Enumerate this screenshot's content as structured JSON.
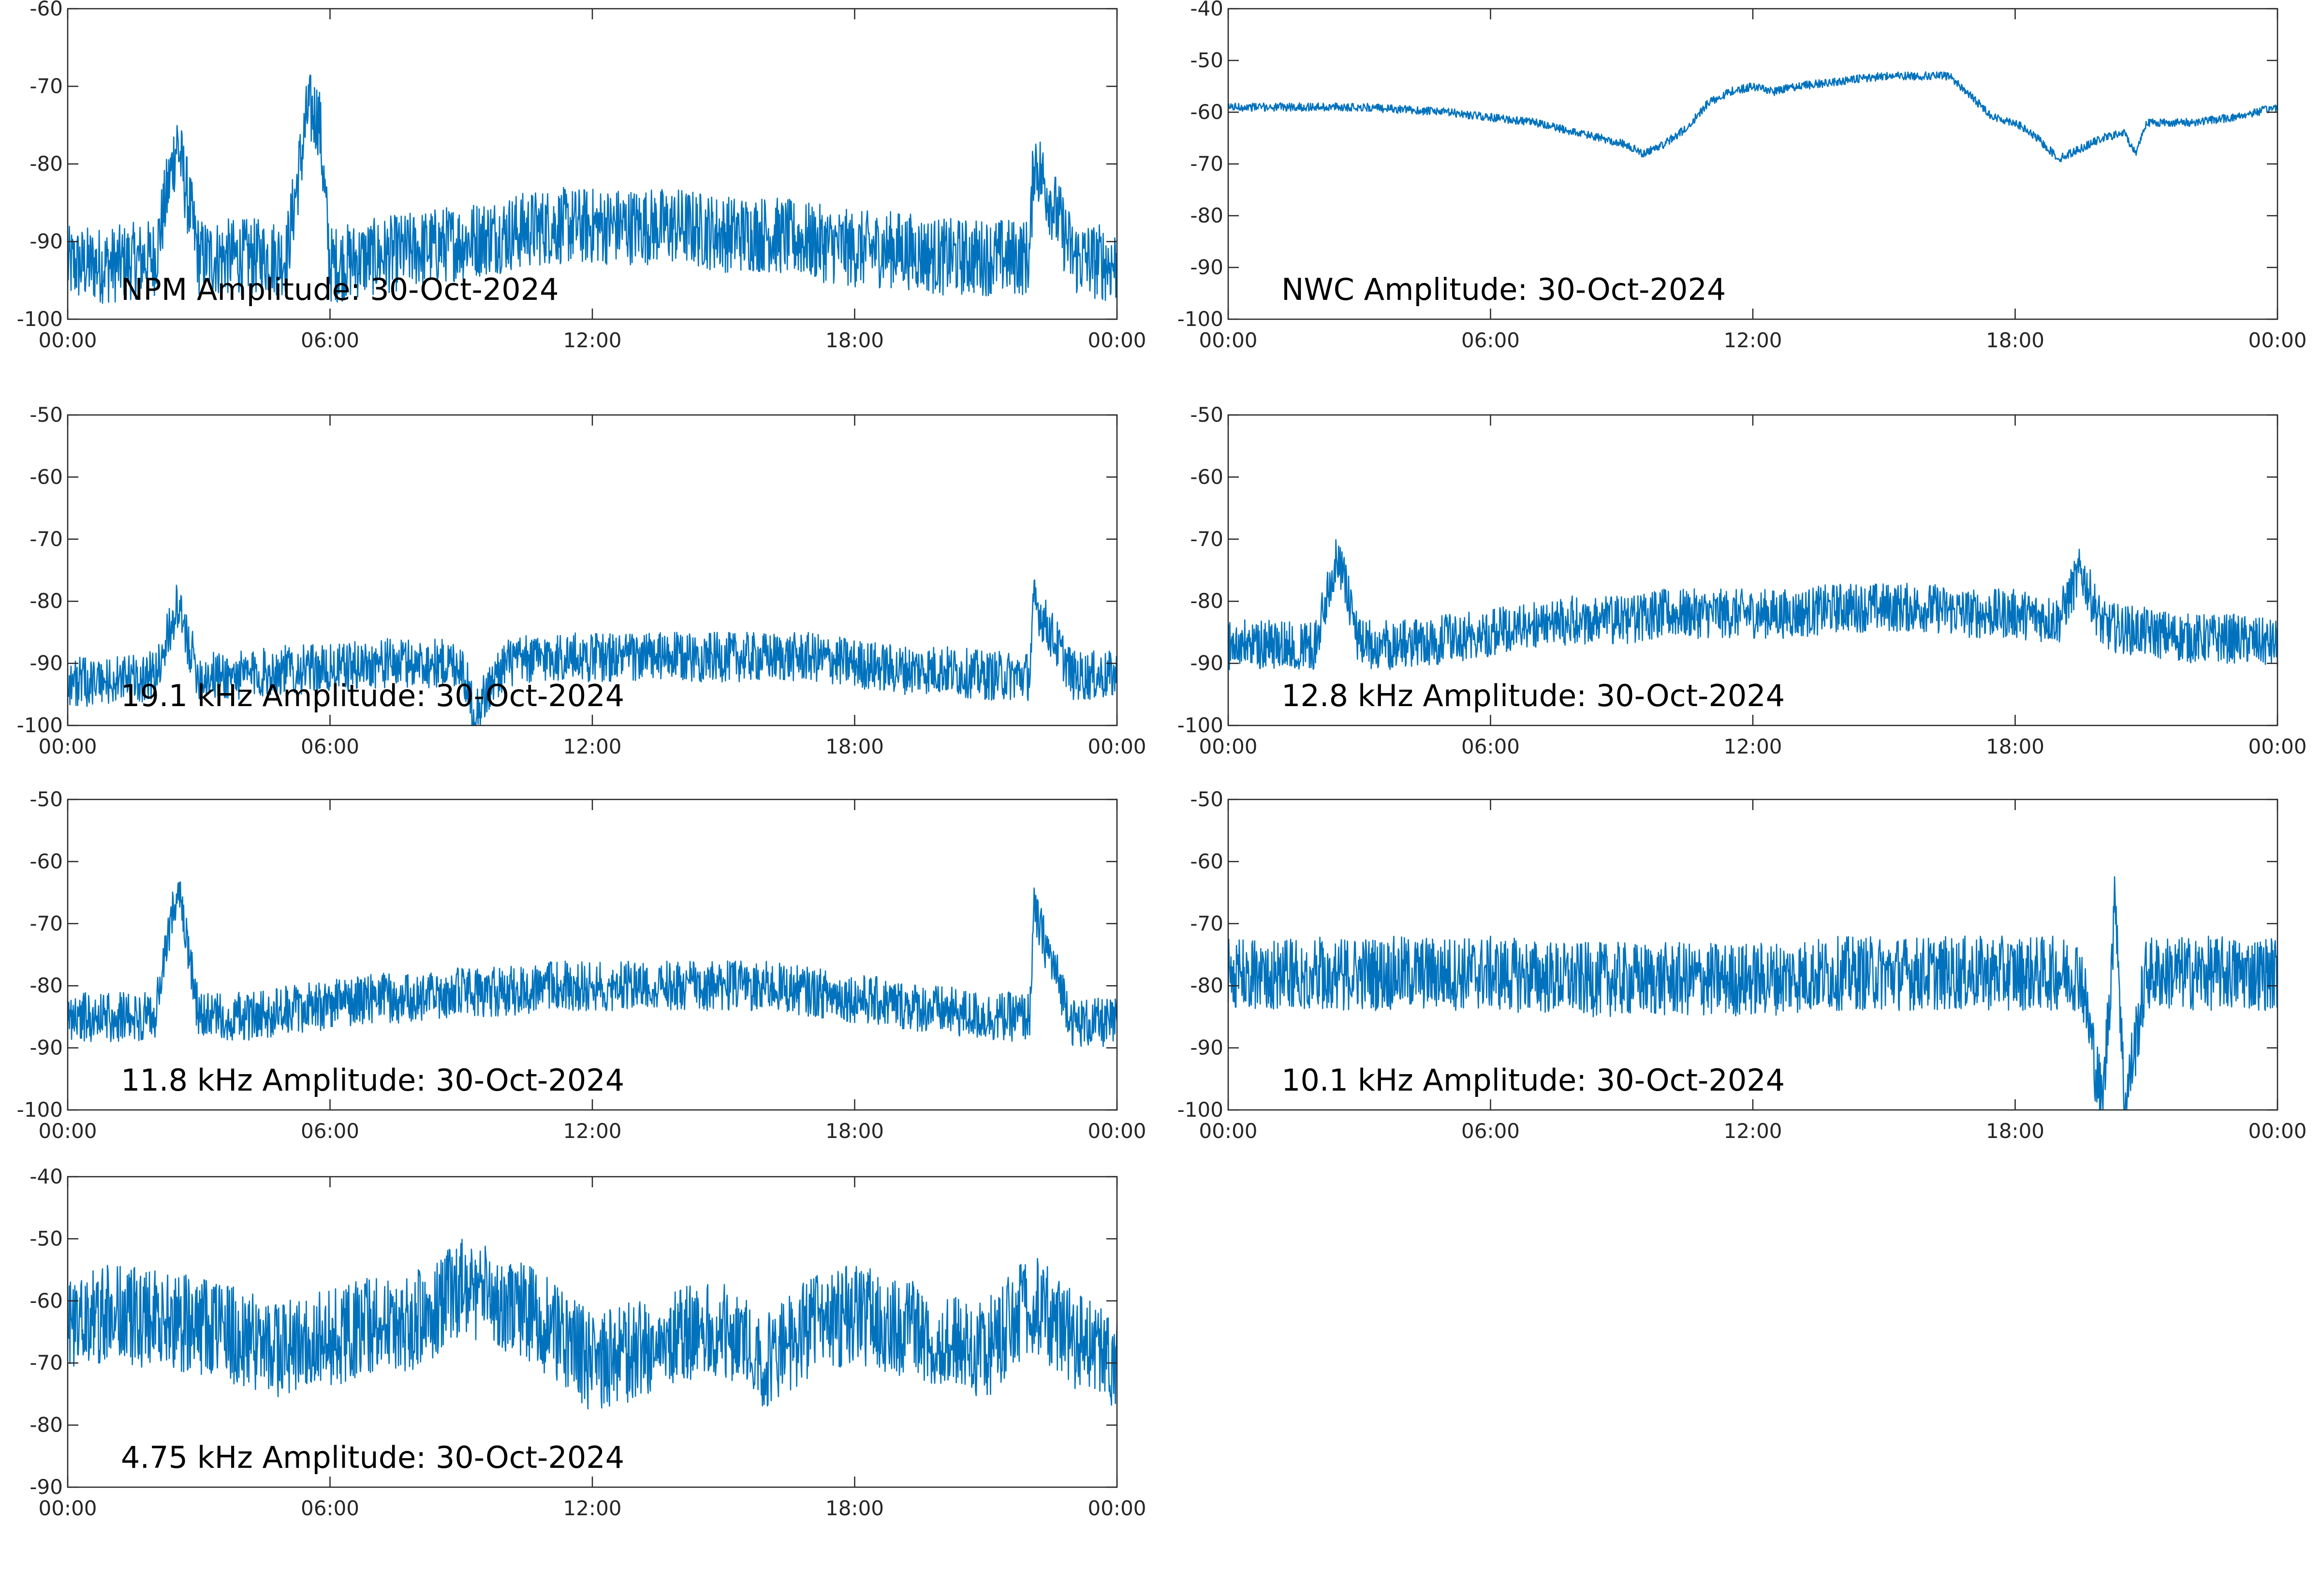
{
  "colors": {
    "series": "#0072BD",
    "axis": "#262626",
    "background": "#ffffff"
  },
  "chart_data": [
    {
      "type": "line",
      "label": "NPM Amplitude: 30-Oct-2024",
      "xticks": [
        "00:00",
        "06:00",
        "12:00",
        "18:00",
        "00:00"
      ],
      "xlim": [
        0,
        24
      ],
      "ylim": [
        -100,
        -60
      ],
      "yticks": [
        -100,
        -90,
        -80,
        -70,
        -60
      ],
      "x": [
        0,
        1,
        2,
        2.5,
        3,
        4,
        5,
        5.5,
        5.75,
        6,
        7,
        8,
        9,
        10,
        11,
        12,
        13,
        14,
        15,
        16,
        17,
        18,
        19,
        20,
        21,
        22,
        22.1,
        23,
        24
      ],
      "values": [
        -93,
        -93,
        -92,
        -77,
        -92,
        -92,
        -92,
        -73,
        -74,
        -93,
        -92,
        -91,
        -90,
        -89,
        -88,
        -88,
        -88,
        -88,
        -89,
        -89,
        -90,
        -91,
        -91,
        -92,
        -92,
        -92,
        -79,
        -92,
        -93
      ],
      "spread": 5
    },
    {
      "type": "line",
      "label": "NWC Amplitude: 30-Oct-2024",
      "xticks": [
        "00:00",
        "06:00",
        "12:00",
        "18:00",
        "00:00"
      ],
      "xlim": [
        0,
        24
      ],
      "ylim": [
        -100,
        -40
      ],
      "yticks": [
        -100,
        -90,
        -80,
        -70,
        -60,
        -50,
        -40
      ],
      "x": [
        0,
        3,
        5,
        7,
        8,
        9,
        9.5,
        10,
        10.5,
        11,
        11.5,
        12,
        12.5,
        13,
        14,
        15,
        16,
        16.5,
        17,
        17.5,
        18,
        18.5,
        19,
        19.5,
        20,
        20.5,
        20.75,
        21,
        22,
        23,
        24
      ],
      "values": [
        -59,
        -59,
        -60,
        -62,
        -64,
        -66,
        -68,
        -66,
        -63,
        -58,
        -56,
        -55,
        -56,
        -55,
        -54,
        -53,
        -53,
        -53,
        -57,
        -61,
        -62,
        -65,
        -69,
        -67,
        -65,
        -64,
        -68,
        -62,
        -62,
        -61,
        -59
      ],
      "spread": 0.8
    },
    {
      "type": "line",
      "label": "19.1 kHz Amplitude: 30-Oct-2024",
      "xticks": [
        "00:00",
        "06:00",
        "12:00",
        "18:00",
        "00:00"
      ],
      "xlim": [
        0,
        24
      ],
      "ylim": [
        -100,
        -50
      ],
      "yticks": [
        -100,
        -90,
        -80,
        -70,
        -60,
        -50
      ],
      "x": [
        0,
        1,
        2,
        2.5,
        3,
        4,
        5,
        6,
        7,
        8,
        9,
        9.3,
        10,
        11,
        12,
        13,
        14,
        15,
        16,
        17,
        18,
        19,
        20,
        21,
        22,
        22.1,
        23,
        24
      ],
      "values": [
        -93,
        -93,
        -92,
        -81,
        -92,
        -92,
        -91,
        -91,
        -90,
        -90,
        -90,
        -98,
        -90,
        -89,
        -89,
        -89,
        -89,
        -89,
        -89,
        -89,
        -90,
        -91,
        -91,
        -92,
        -92,
        -80,
        -92,
        -92
      ],
      "spread": 4
    },
    {
      "type": "line",
      "label": "12.8 kHz Amplitude: 30-Oct-2024",
      "xticks": [
        "00:00",
        "06:00",
        "12:00",
        "18:00",
        "00:00"
      ],
      "xlim": [
        0,
        24
      ],
      "ylim": [
        -100,
        -50
      ],
      "yticks": [
        -100,
        -90,
        -80,
        -70,
        -60,
        -50
      ],
      "x": [
        0,
        1,
        2,
        2.5,
        3,
        4,
        5,
        6,
        7,
        8,
        9,
        10,
        11,
        12,
        13,
        14,
        15,
        16,
        17,
        18,
        19,
        19.5,
        20,
        21,
        22,
        23,
        24
      ],
      "values": [
        -87,
        -87,
        -87,
        -72,
        -87,
        -87,
        -86,
        -85,
        -84,
        -83,
        -83,
        -82,
        -82,
        -82,
        -82,
        -81,
        -81,
        -81,
        -82,
        -82,
        -83,
        -75,
        -84,
        -85,
        -86,
        -86,
        -87
      ],
      "spread": 4
    },
    {
      "type": "line",
      "label": "11.8 kHz Amplitude: 30-Oct-2024",
      "xticks": [
        "00:00",
        "06:00",
        "12:00",
        "18:00",
        "00:00"
      ],
      "xlim": [
        0,
        24
      ],
      "ylim": [
        -100,
        -50
      ],
      "yticks": [
        -100,
        -90,
        -80,
        -70,
        -60,
        -50
      ],
      "x": [
        0,
        1,
        2,
        2.5,
        3,
        4,
        5,
        6,
        7,
        8,
        9,
        10,
        11,
        12,
        13,
        14,
        15,
        16,
        17,
        18,
        19,
        20,
        21,
        22,
        22.1,
        23,
        24
      ],
      "values": [
        -85,
        -85,
        -85,
        -64,
        -85,
        -85,
        -84,
        -83,
        -82,
        -82,
        -81,
        -81,
        -80,
        -80,
        -80,
        -80,
        -80,
        -80,
        -81,
        -82,
        -83,
        -84,
        -85,
        -85,
        -68,
        -86,
        -86
      ],
      "spread": 4
    },
    {
      "type": "line",
      "label": "10.1 kHz Amplitude: 30-Oct-2024",
      "xticks": [
        "00:00",
        "06:00",
        "12:00",
        "18:00",
        "00:00"
      ],
      "xlim": [
        0,
        24
      ],
      "ylim": [
        -100,
        -50
      ],
      "yticks": [
        -100,
        -90,
        -80,
        -70,
        -60,
        -50
      ],
      "x": [
        0,
        2,
        4,
        6,
        8,
        10,
        12,
        14,
        16,
        18,
        19.5,
        20,
        20.3,
        20.5,
        21,
        22,
        23,
        24
      ],
      "values": [
        -78,
        -78,
        -78,
        -78,
        -79,
        -79,
        -79,
        -78,
        -78,
        -78,
        -78,
        -100,
        -65,
        -100,
        -78,
        -78,
        -78,
        -78
      ],
      "spread": 6
    },
    {
      "type": "line",
      "label": "4.75 kHz Amplitude: 30-Oct-2024",
      "xticks": [
        "00:00",
        "06:00",
        "12:00",
        "18:00",
        "00:00"
      ],
      "xlim": [
        0,
        24
      ],
      "ylim": [
        -90,
        -40
      ],
      "yticks": [
        -90,
        -80,
        -70,
        -60,
        -50,
        -40
      ],
      "x": [
        0,
        1,
        2,
        3,
        4,
        5,
        6,
        7,
        8,
        9,
        10,
        11,
        12,
        13,
        14,
        15,
        16,
        17,
        18,
        19,
        20,
        21,
        22,
        23,
        24
      ],
      "values": [
        -64,
        -62,
        -63,
        -64,
        -66,
        -68,
        -66,
        -64,
        -63,
        -58,
        -60,
        -64,
        -70,
        -68,
        -66,
        -64,
        -70,
        -64,
        -62,
        -64,
        -66,
        -68,
        -60,
        -66,
        -70
      ],
      "spread": 8
    }
  ]
}
